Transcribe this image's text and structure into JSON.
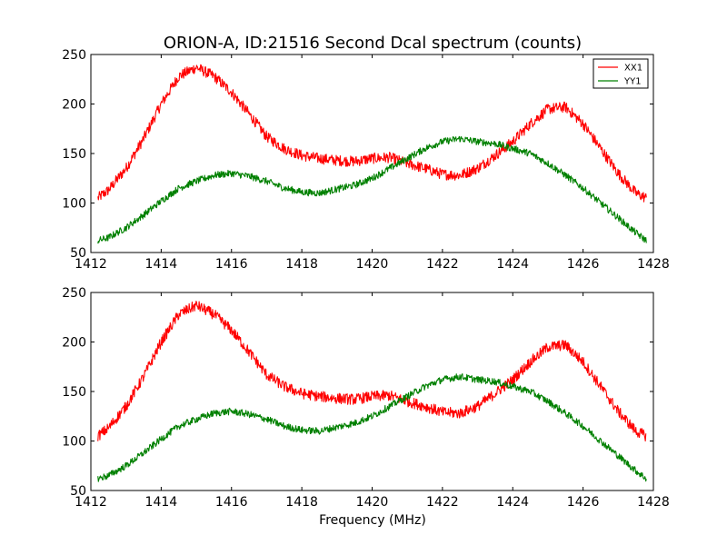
{
  "figure": {
    "title": "ORION-A, ID:21516 Second Dcal spectrum (counts)",
    "xlabel": "Frequency (MHz)"
  },
  "colors": {
    "XX1": "#ff0000",
    "YY1": "#008000",
    "axes": "#000000",
    "background": "#ffffff"
  },
  "chart_data": [
    {
      "type": "line",
      "title": "ORION-A, ID:21516 Second Dcal spectrum (counts)",
      "xlabel": "",
      "ylabel": "",
      "xlim": [
        1412,
        1428
      ],
      "ylim": [
        50,
        250
      ],
      "xticks": [
        "1412",
        "1414",
        "1416",
        "1418",
        "1420",
        "1422",
        "1424",
        "1426",
        "1428"
      ],
      "yticks": [
        "50",
        "100",
        "150",
        "200",
        "250"
      ],
      "grid": false,
      "legend": {
        "placement": "top-right",
        "entries": [
          "XX1",
          "YY1"
        ]
      },
      "x": [
        1412.2,
        1412.5,
        1413.0,
        1413.5,
        1414.0,
        1414.5,
        1415.0,
        1415.5,
        1416.0,
        1416.5,
        1417.0,
        1417.5,
        1418.0,
        1418.5,
        1419.0,
        1419.5,
        1420.0,
        1420.5,
        1421.0,
        1421.5,
        1422.0,
        1422.5,
        1423.0,
        1423.5,
        1424.0,
        1424.5,
        1425.0,
        1425.5,
        1426.0,
        1426.5,
        1427.0,
        1427.5,
        1427.8
      ],
      "series": [
        {
          "name": "XX1",
          "color": "#ff0000",
          "values": [
            105,
            113,
            135,
            165,
            200,
            228,
            237,
            228,
            212,
            190,
            167,
            155,
            148,
            145,
            143,
            142,
            145,
            146,
            140,
            135,
            129,
            128,
            135,
            148,
            162,
            180,
            195,
            197,
            180,
            155,
            130,
            110,
            105
          ]
        },
        {
          "name": "YY1",
          "color": "#008000",
          "values": [
            62,
            65,
            75,
            88,
            102,
            115,
            122,
            128,
            130,
            127,
            122,
            115,
            111,
            110,
            114,
            118,
            125,
            135,
            145,
            155,
            162,
            165,
            162,
            160,
            155,
            150,
            140,
            128,
            115,
            100,
            85,
            70,
            62
          ]
        }
      ]
    },
    {
      "type": "line",
      "xlabel": "Frequency (MHz)",
      "ylabel": "",
      "xlim": [
        1412,
        1428
      ],
      "ylim": [
        50,
        250
      ],
      "xticks": [
        "1412",
        "1414",
        "1416",
        "1418",
        "1420",
        "1422",
        "1424",
        "1426",
        "1428"
      ],
      "yticks": [
        "50",
        "100",
        "150",
        "200",
        "250"
      ],
      "grid": false,
      "x": [
        1412.2,
        1412.5,
        1413.0,
        1413.5,
        1414.0,
        1414.5,
        1415.0,
        1415.5,
        1416.0,
        1416.5,
        1417.0,
        1417.5,
        1418.0,
        1418.5,
        1419.0,
        1419.5,
        1420.0,
        1420.5,
        1421.0,
        1421.5,
        1422.0,
        1422.5,
        1423.0,
        1423.5,
        1424.0,
        1424.5,
        1425.0,
        1425.5,
        1426.0,
        1426.5,
        1427.0,
        1427.5,
        1427.8
      ],
      "series": [
        {
          "name": "XX1",
          "color": "#ff0000",
          "values": [
            105,
            113,
            135,
            165,
            200,
            228,
            237,
            228,
            212,
            190,
            167,
            155,
            148,
            145,
            143,
            142,
            145,
            146,
            140,
            135,
            129,
            128,
            135,
            148,
            162,
            180,
            195,
            197,
            180,
            155,
            130,
            110,
            105
          ]
        },
        {
          "name": "YY1",
          "color": "#008000",
          "values": [
            62,
            65,
            75,
            88,
            102,
            115,
            122,
            128,
            130,
            127,
            122,
            115,
            111,
            110,
            114,
            118,
            125,
            135,
            145,
            155,
            162,
            165,
            162,
            160,
            155,
            150,
            140,
            128,
            115,
            100,
            85,
            70,
            62
          ]
        }
      ]
    }
  ]
}
